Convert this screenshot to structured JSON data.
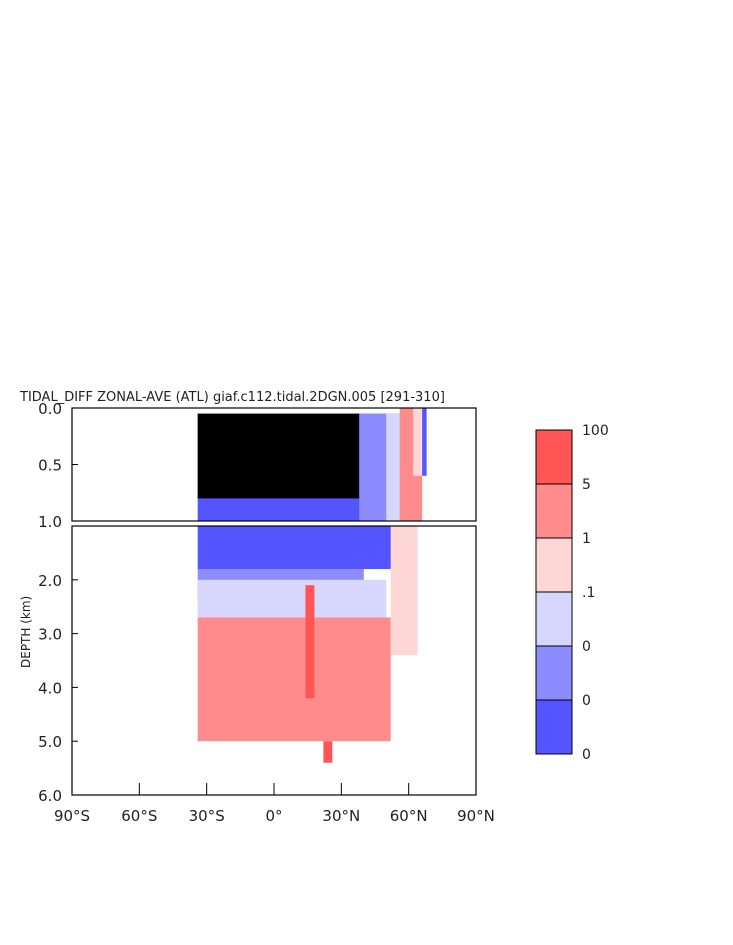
{
  "chart_data": {
    "type": "heatmap",
    "title": "TIDAL_DIFF ZONAL-AVE (ATL) giaf.c112.tidal.2DGN.005 [291-310]",
    "ylabel": "DEPTH (km)",
    "xlabel": "",
    "x_range": [
      -90,
      90
    ],
    "y_range": [
      0,
      6
    ],
    "top_panel_y_range": [
      0,
      1
    ],
    "bottom_panel_y_range": [
      1,
      6
    ],
    "x_ticks": [
      {
        "value": -90,
        "label": "90°S"
      },
      {
        "value": -60,
        "label": "60°S"
      },
      {
        "value": -30,
        "label": "30°S"
      },
      {
        "value": 0,
        "label": "0°"
      },
      {
        "value": 30,
        "label": "30°N"
      },
      {
        "value": 60,
        "label": "60°N"
      },
      {
        "value": 90,
        "label": "90°N"
      }
    ],
    "y_ticks_top": [
      {
        "value": 0.0,
        "label": "0.0"
      },
      {
        "value": 0.5,
        "label": "0.5"
      },
      {
        "value": 1.0,
        "label": "1.0"
      }
    ],
    "y_ticks_bottom": [
      {
        "value": 2.0,
        "label": "2.0"
      },
      {
        "value": 3.0,
        "label": "3.0"
      },
      {
        "value": 4.0,
        "label": "4.0"
      },
      {
        "value": 5.0,
        "label": "5.0"
      },
      {
        "value": 6.0,
        "label": "6.0"
      }
    ],
    "colorbar": {
      "levels": [
        "100",
        "5",
        "1",
        ".1",
        "0",
        "0",
        "0"
      ],
      "colors": [
        "#ff5555",
        "#ff8c8c",
        "#ffd6d6",
        "#d6d6ff",
        "#8c8cff",
        "#5555ff"
      ]
    },
    "regions": [
      {
        "band": "top",
        "lat_min": -34,
        "lat_max": 56,
        "depth_min": 0.05,
        "depth_max": 1.0,
        "class": 5
      },
      {
        "band": "top",
        "lat_min": -34,
        "lat_max": 38,
        "depth_min": 0.05,
        "depth_max": 0.8,
        "class": 6
      },
      {
        "band": "top",
        "lat_min": 38,
        "lat_max": 56,
        "depth_min": 0.05,
        "depth_max": 1.0,
        "class": 4
      },
      {
        "band": "top",
        "lat_min": 50,
        "lat_max": 58,
        "depth_min": 0.05,
        "depth_max": 1.0,
        "class": 3
      },
      {
        "band": "top",
        "lat_min": 56,
        "lat_max": 66,
        "depth_min": 0.0,
        "depth_max": 1.0,
        "class": 1
      },
      {
        "band": "top",
        "lat_min": 62,
        "lat_max": 67,
        "depth_min": 0.0,
        "depth_max": 0.6,
        "class": 2
      },
      {
        "band": "top",
        "lat_min": 66,
        "lat_max": 68,
        "depth_min": 0.0,
        "depth_max": 0.6,
        "class": 5
      },
      {
        "band": "bottom",
        "lat_min": -34,
        "lat_max": 56,
        "depth_min": 1.0,
        "depth_max": 1.8,
        "class": 5
      },
      {
        "band": "bottom",
        "lat_min": -34,
        "lat_max": 40,
        "depth_min": 1.8,
        "depth_max": 2.4,
        "class": 4
      },
      {
        "band": "bottom",
        "lat_min": -34,
        "lat_max": 50,
        "depth_min": 2.0,
        "depth_max": 2.8,
        "class": 3
      },
      {
        "band": "bottom",
        "lat_min": -34,
        "lat_max": 52,
        "depth_min": 2.7,
        "depth_max": 5.0,
        "class": 1
      },
      {
        "band": "bottom",
        "lat_min": 52,
        "lat_max": 64,
        "depth_min": 1.0,
        "depth_max": 3.4,
        "class": 2
      },
      {
        "band": "bottom",
        "lat_min": 14,
        "lat_max": 18,
        "depth_min": 2.1,
        "depth_max": 4.2,
        "class": 0
      },
      {
        "band": "bottom",
        "lat_min": 22,
        "lat_max": 26,
        "depth_min": 5.0,
        "depth_max": 5.4,
        "class": 0
      }
    ]
  }
}
